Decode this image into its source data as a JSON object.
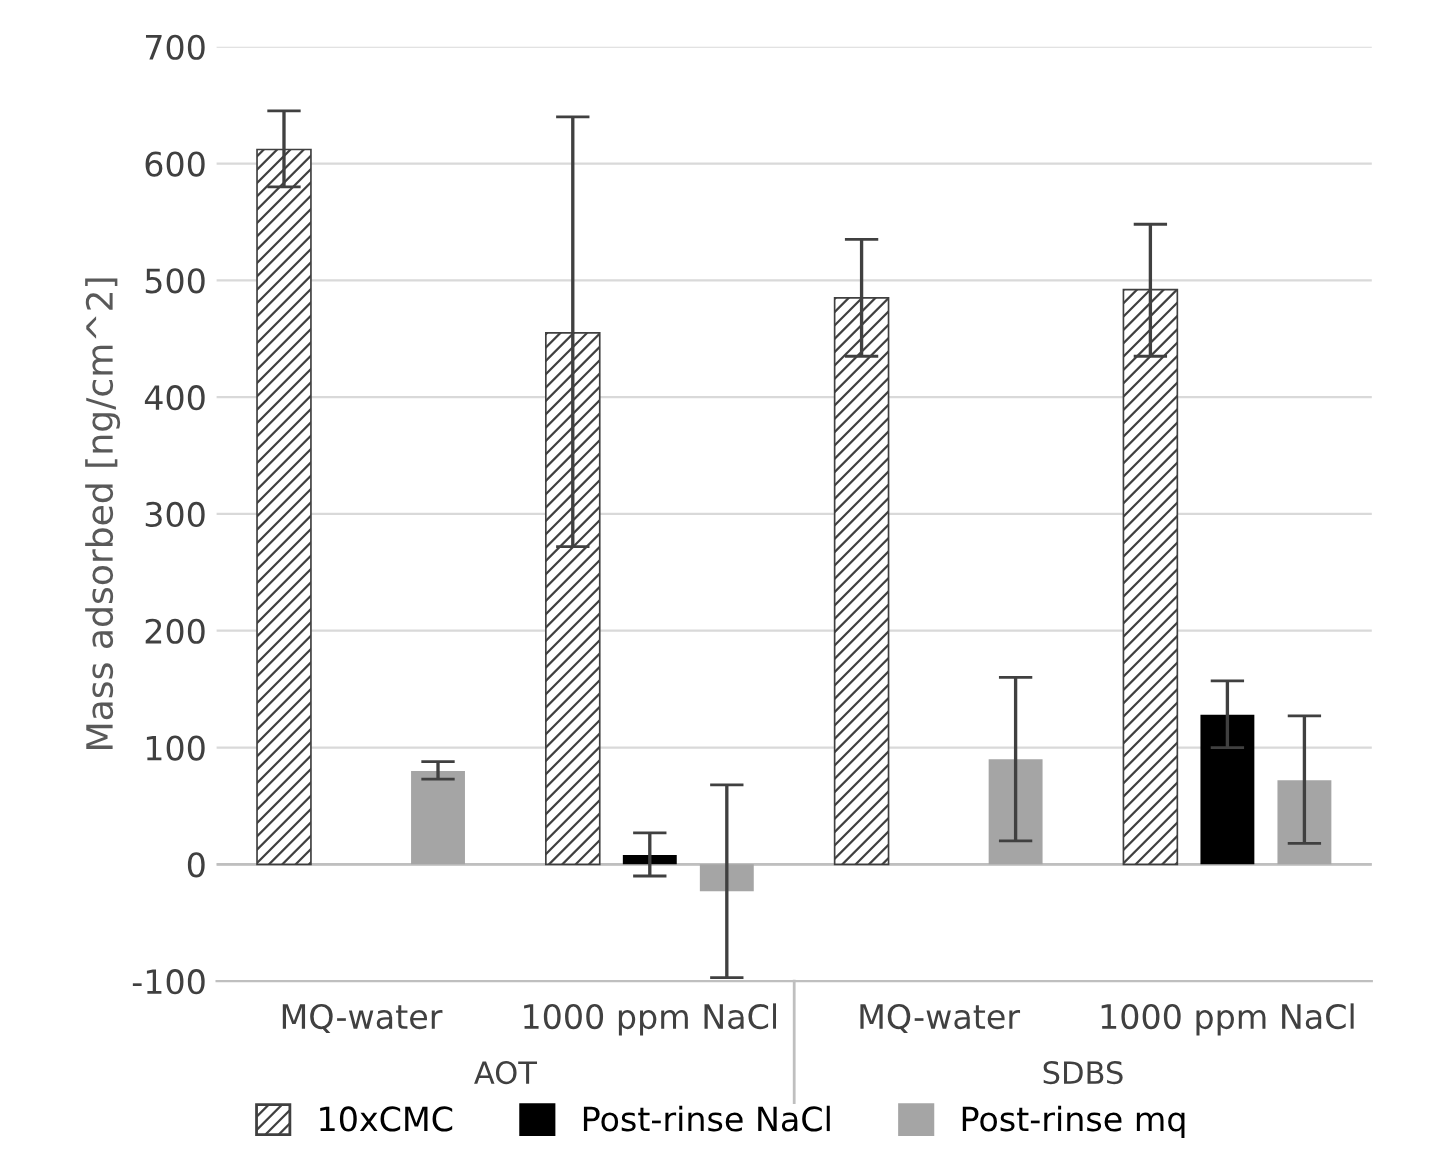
{
  "chart_data": {
    "type": "bar",
    "ylabel": "Mass adsorbed [ng/cm^2]",
    "categories": [
      "MQ-water",
      "1000 ppm NaCl",
      "MQ-water",
      "1000 ppm NaCl"
    ],
    "annotations": [
      "AOT",
      "SDBS"
    ],
    "series": [
      {
        "name": "10xCMC",
        "color": "#404040",
        "values": [
          612,
          455,
          485,
          492
        ],
        "errors": [
          [
            580,
            645
          ],
          [
            272,
            640
          ],
          [
            435,
            535
          ],
          [
            435,
            548
          ]
        ]
      },
      {
        "name": "Post-rinse NaCl",
        "color": "#000000",
        "values": [
          null,
          8,
          null,
          128
        ],
        "errors": [
          null,
          [
            -10,
            27
          ],
          null,
          [
            100,
            157
          ]
        ]
      },
      {
        "name": "Post-rinse mq",
        "color": "#a5a5a5",
        "values": [
          80,
          -23,
          90,
          72
        ],
        "errors": [
          [
            73,
            88
          ],
          [
            -97,
            68
          ],
          [
            20,
            160
          ],
          [
            18,
            127
          ]
        ]
      }
    ],
    "ylim": [
      -100,
      700
    ],
    "yticks": [
      -100,
      0,
      100,
      200,
      300,
      400,
      500,
      600,
      700
    ],
    "grid": "y",
    "legend": "bottom"
  }
}
